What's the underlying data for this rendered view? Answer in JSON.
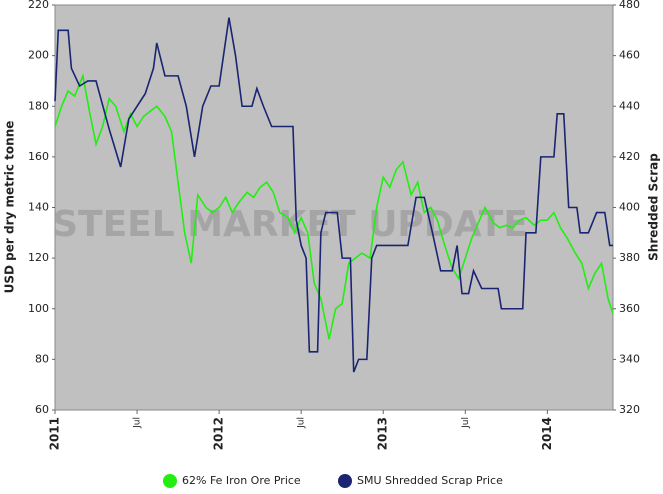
{
  "chart_data": {
    "type": "line",
    "watermark": "STEEL MARKET UPDATE",
    "ylabel": "USD per dry metric tonne",
    "y2label": "Shredded Scrap",
    "xlim": [
      2011,
      2014.4
    ],
    "xticks": [
      2011,
      {
        "value": 2011.5,
        "label": "Jul"
      },
      2012,
      {
        "value": 2012.5,
        "label": "Jul"
      },
      2013,
      {
        "value": 2013.5,
        "label": "Jul"
      },
      2014
    ],
    "ylim": [
      60,
      220
    ],
    "yticks": [
      60,
      80,
      100,
      120,
      140,
      160,
      180,
      200,
      220
    ],
    "y2lim": [
      320,
      480
    ],
    "y2ticks": [
      320,
      340,
      360,
      380,
      400,
      420,
      440,
      460,
      480
    ],
    "grid": false,
    "legend": "bottom",
    "series": [
      {
        "name": "62% Fe Iron Ore Price",
        "color": "#22ee11",
        "x": [
          2011.0,
          2011.04,
          2011.08,
          2011.12,
          2011.17,
          2011.21,
          2011.25,
          2011.29,
          2011.33,
          2011.37,
          2011.42,
          2011.46,
          2011.5,
          2011.54,
          2011.58,
          2011.62,
          2011.67,
          2011.71,
          2011.75,
          2011.79,
          2011.83,
          2011.87,
          2011.92,
          2011.96,
          2012.0,
          2012.04,
          2012.08,
          2012.12,
          2012.17,
          2012.21,
          2012.25,
          2012.29,
          2012.33,
          2012.37,
          2012.42,
          2012.46,
          2012.5,
          2012.54,
          2012.58,
          2012.62,
          2012.67,
          2012.71,
          2012.75,
          2012.79,
          2012.83,
          2012.87,
          2012.92,
          2012.96,
          2013.0,
          2013.04,
          2013.08,
          2013.12,
          2013.17,
          2013.21,
          2013.25,
          2013.29,
          2013.33,
          2013.37,
          2013.42,
          2013.46,
          2013.5,
          2013.54,
          2013.58,
          2013.62,
          2013.67,
          2013.71,
          2013.75,
          2013.79,
          2013.83,
          2013.87,
          2013.92,
          2013.96,
          2014.0,
          2014.04,
          2014.08,
          2014.12,
          2014.17,
          2014.21,
          2014.25,
          2014.29,
          2014.33,
          2014.37,
          2014.4
        ],
        "values": [
          172,
          180,
          186,
          184,
          192,
          178,
          165,
          172,
          183,
          180,
          170,
          177,
          172,
          176,
          178,
          180,
          176,
          170,
          150,
          130,
          118,
          145,
          140,
          138,
          140,
          144,
          138,
          142,
          146,
          144,
          148,
          150,
          146,
          138,
          136,
          130,
          136,
          130,
          110,
          104,
          88,
          100,
          102,
          118,
          120,
          122,
          120,
          140,
          152,
          148,
          155,
          158,
          145,
          150,
          138,
          140,
          135,
          126,
          116,
          112,
          120,
          128,
          134,
          140,
          134,
          132,
          133,
          132,
          135,
          136,
          133,
          135,
          135,
          138,
          132,
          128,
          122,
          118,
          108,
          114,
          118,
          104,
          98
        ]
      },
      {
        "name": "SMU Shredded Scrap Price",
        "color": "#1a2472",
        "axis": "y2",
        "x": [
          2011.0,
          2011.02,
          2011.08,
          2011.1,
          2011.15,
          2011.2,
          2011.25,
          2011.33,
          2011.4,
          2011.45,
          2011.55,
          2011.6,
          2011.62,
          2011.67,
          2011.75,
          2011.8,
          2011.85,
          2011.9,
          2011.95,
          2012.0,
          2012.06,
          2012.1,
          2012.14,
          2012.2,
          2012.23,
          2012.27,
          2012.32,
          2012.4,
          2012.45,
          2012.47,
          2012.5,
          2012.53,
          2012.55,
          2012.6,
          2012.62,
          2012.65,
          2012.72,
          2012.75,
          2012.8,
          2012.82,
          2012.85,
          2012.9,
          2012.93,
          2012.96,
          2013.0,
          2013.15,
          2013.2,
          2013.25,
          2013.3,
          2013.35,
          2013.42,
          2013.45,
          2013.48,
          2013.52,
          2013.55,
          2013.6,
          2013.7,
          2013.72,
          2013.85,
          2013.87,
          2013.93,
          2013.96,
          2014.0,
          2014.04,
          2014.06,
          2014.1,
          2014.13,
          2014.18,
          2014.2,
          2014.25,
          2014.3,
          2014.35,
          2014.38,
          2014.4
        ],
        "values": [
          442,
          470,
          470,
          455,
          448,
          450,
          450,
          431,
          416,
          435,
          445,
          455,
          465,
          452,
          452,
          440,
          420,
          440,
          448,
          448,
          475,
          460,
          440,
          440,
          447,
          440,
          432,
          432,
          432,
          395,
          385,
          380,
          343,
          343,
          390,
          398,
          398,
          380,
          380,
          335,
          340,
          340,
          380,
          385,
          385,
          385,
          404,
          404,
          390,
          375,
          375,
          385,
          366,
          366,
          375,
          368,
          368,
          360,
          360,
          390,
          390,
          420,
          420,
          420,
          437,
          437,
          400,
          400,
          390,
          390,
          398,
          398,
          385,
          385
        ]
      }
    ]
  }
}
